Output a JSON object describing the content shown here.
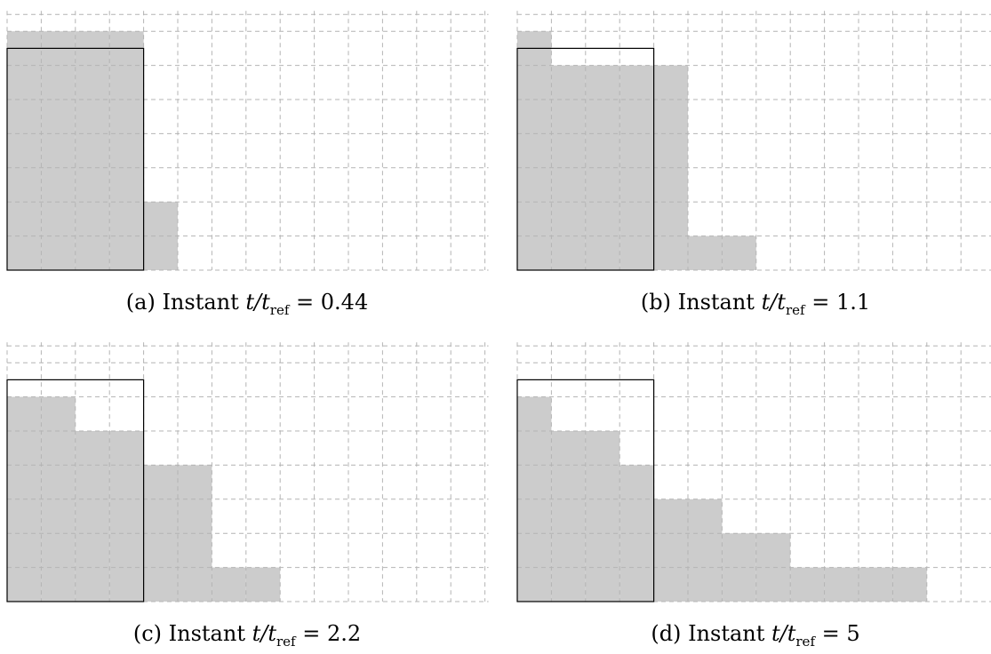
{
  "colors": {
    "fill": "#cccccc",
    "grid": "#b4b4b4",
    "outline": "#000000"
  },
  "grid": {
    "columns": 14,
    "rows": 7
  },
  "initial_block": {
    "columns": 4,
    "rows": 6.5
  },
  "panels": [
    {
      "tag": "(a)",
      "prefix": "Instant",
      "var": "t/t",
      "sub": "ref",
      "value": "= 0.44",
      "column_heights": [
        7,
        7,
        7,
        7,
        2
      ]
    },
    {
      "tag": "(b)",
      "prefix": "Instant",
      "var": "t/t",
      "sub": "ref",
      "value": "= 1.1",
      "column_heights": [
        7,
        6,
        6,
        6,
        6,
        1,
        1
      ]
    },
    {
      "tag": "(c)",
      "prefix": "Instant",
      "var": "t/t",
      "sub": "ref",
      "value": "= 2.2",
      "column_heights": [
        6,
        6,
        5,
        5,
        4,
        4,
        1,
        1
      ]
    },
    {
      "tag": "(d)",
      "prefix": "Instant",
      "var": "t/t",
      "sub": "ref",
      "value": "= 5",
      "column_heights": [
        6,
        5,
        5,
        4,
        3,
        3,
        2,
        2,
        1,
        1,
        1,
        1
      ]
    }
  ]
}
